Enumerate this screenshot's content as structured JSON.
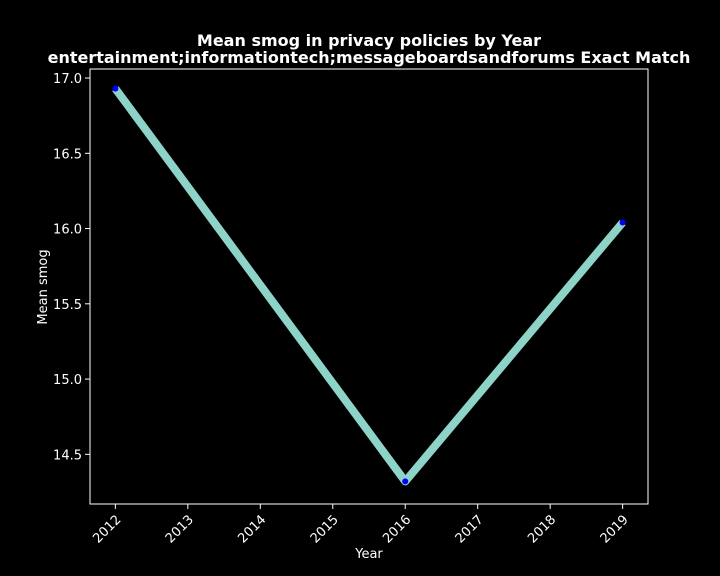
{
  "chart_data": {
    "type": "line",
    "title": "Mean smog in privacy policies by Year",
    "subtitle": "entertainment;informationtech;messageboardsandforums Exact Match",
    "xlabel": "Year",
    "ylabel": "Mean smog",
    "x": [
      2012,
      2016,
      2019
    ],
    "series": [
      {
        "values": [
          16.93,
          14.32,
          16.04
        ]
      }
    ],
    "xlim": [
      2011.65,
      2019.35
    ],
    "ylim": [
      14.17,
      17.06
    ],
    "xticks": [
      "2012",
      "2013",
      "2014",
      "2015",
      "2016",
      "2017",
      "2018",
      "2019"
    ],
    "yticks": [
      "14.5",
      "15.0",
      "15.5",
      "16.0",
      "16.5",
      "17.0"
    ],
    "grid": false,
    "colors": {
      "background": "#000000",
      "line": "#8dd3c7",
      "marker": "#0000ff",
      "text": "#ffffff"
    }
  }
}
